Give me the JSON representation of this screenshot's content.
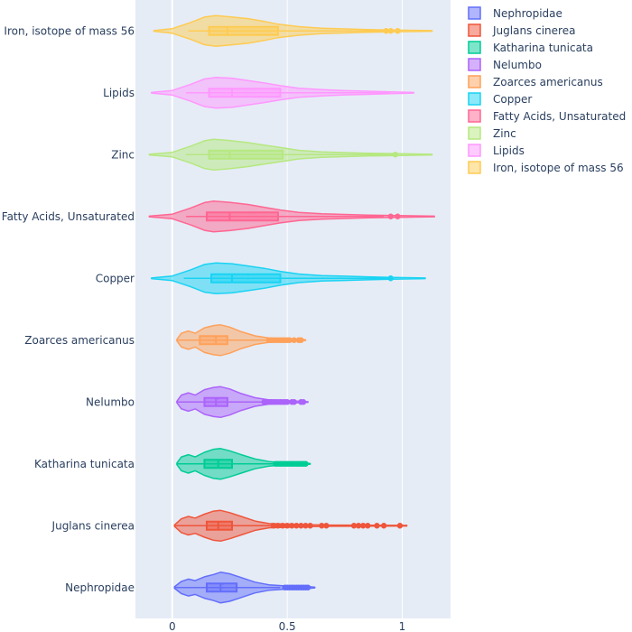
{
  "chart_data": {
    "type": "violin",
    "orientation": "horizontal",
    "title": "",
    "xlabel": "",
    "ylabel": "",
    "xlim": [
      -0.16,
      1.21
    ],
    "x_ticks": [
      0,
      0.5,
      1
    ],
    "x_tick_labels": [
      "0",
      "0.5",
      "1"
    ],
    "grid": true,
    "legend_position": "right",
    "series": [
      {
        "name": "Nephropidae",
        "color": "#636efa",
        "range": [
          0.01,
          0.62
        ],
        "box": {
          "q1": 0.15,
          "median": 0.21,
          "mean": 0.22,
          "q3": 0.28,
          "lower_fence": 0.01,
          "upper_fence": 0.47
        },
        "outliers": [
          0.49,
          0.5,
          0.51,
          0.52,
          0.53,
          0.54,
          0.55,
          0.56,
          0.57,
          0.58,
          0.59
        ],
        "density": [
          [
            0.01,
            0.05
          ],
          [
            0.04,
            0.4
          ],
          [
            0.07,
            0.55
          ],
          [
            0.1,
            0.45
          ],
          [
            0.14,
            0.7
          ],
          [
            0.18,
            0.85
          ],
          [
            0.21,
            1.0
          ],
          [
            0.25,
            0.9
          ],
          [
            0.3,
            0.65
          ],
          [
            0.36,
            0.35
          ],
          [
            0.42,
            0.18
          ],
          [
            0.48,
            0.12
          ],
          [
            0.53,
            0.12
          ],
          [
            0.58,
            0.08
          ],
          [
            0.62,
            0.02
          ]
        ]
      },
      {
        "name": "Juglans cinerea",
        "color": "#ef553b",
        "range": [
          0.01,
          1.02
        ],
        "box": {
          "q1": 0.15,
          "median": 0.2,
          "mean": 0.2,
          "q3": 0.26,
          "lower_fence": 0.01,
          "upper_fence": 0.43
        },
        "outliers": [
          0.44,
          0.46,
          0.48,
          0.5,
          0.52,
          0.54,
          0.56,
          0.58,
          0.6,
          0.65,
          0.67,
          0.79,
          0.81,
          0.83,
          0.85,
          0.89,
          0.92,
          0.99
        ],
        "density": [
          [
            0.01,
            0.05
          ],
          [
            0.04,
            0.45
          ],
          [
            0.07,
            0.6
          ],
          [
            0.1,
            0.5
          ],
          [
            0.14,
            0.75
          ],
          [
            0.18,
            0.95
          ],
          [
            0.21,
            1.0
          ],
          [
            0.25,
            0.85
          ],
          [
            0.3,
            0.6
          ],
          [
            0.36,
            0.3
          ],
          [
            0.42,
            0.14
          ],
          [
            0.5,
            0.1
          ],
          [
            0.6,
            0.06
          ],
          [
            0.7,
            0.04
          ],
          [
            0.85,
            0.03
          ],
          [
            1.02,
            0.02
          ]
        ]
      },
      {
        "name": "Katharina tunicata",
        "color": "#00cc96",
        "range": [
          0.02,
          0.6
        ],
        "box": {
          "q1": 0.14,
          "median": 0.2,
          "mean": 0.2,
          "q3": 0.26,
          "lower_fence": 0.02,
          "upper_fence": 0.44
        },
        "outliers": [
          0.45,
          0.46,
          0.47,
          0.48,
          0.49,
          0.5,
          0.51,
          0.52,
          0.53,
          0.54,
          0.55,
          0.56,
          0.57,
          0.58
        ],
        "density": [
          [
            0.02,
            0.05
          ],
          [
            0.04,
            0.45
          ],
          [
            0.07,
            0.6
          ],
          [
            0.1,
            0.45
          ],
          [
            0.14,
            0.75
          ],
          [
            0.18,
            0.95
          ],
          [
            0.21,
            1.0
          ],
          [
            0.25,
            0.85
          ],
          [
            0.3,
            0.6
          ],
          [
            0.36,
            0.32
          ],
          [
            0.42,
            0.15
          ],
          [
            0.48,
            0.08
          ],
          [
            0.55,
            0.07
          ],
          [
            0.6,
            0.02
          ]
        ]
      },
      {
        "name": "Nelumbo",
        "color": "#ab63fa",
        "range": [
          0.02,
          0.59
        ],
        "box": {
          "q1": 0.14,
          "median": 0.19,
          "mean": 0.2,
          "q3": 0.24,
          "lower_fence": 0.02,
          "upper_fence": 0.39
        },
        "outliers": [
          0.4,
          0.41,
          0.42,
          0.43,
          0.44,
          0.45,
          0.46,
          0.47,
          0.48,
          0.49,
          0.5,
          0.52,
          0.53,
          0.56,
          0.57
        ],
        "density": [
          [
            0.02,
            0.05
          ],
          [
            0.04,
            0.45
          ],
          [
            0.07,
            0.6
          ],
          [
            0.1,
            0.45
          ],
          [
            0.14,
            0.8
          ],
          [
            0.18,
            0.95
          ],
          [
            0.21,
            1.0
          ],
          [
            0.25,
            0.85
          ],
          [
            0.3,
            0.55
          ],
          [
            0.36,
            0.28
          ],
          [
            0.42,
            0.14
          ],
          [
            0.48,
            0.1
          ],
          [
            0.54,
            0.06
          ],
          [
            0.59,
            0.02
          ]
        ]
      },
      {
        "name": "Zoarces americanus",
        "color": "#ffa15a",
        "range": [
          0.02,
          0.58
        ],
        "box": {
          "q1": 0.12,
          "median": 0.19,
          "mean": 0.18,
          "q3": 0.24,
          "lower_fence": 0.02,
          "upper_fence": 0.41
        },
        "outliers": [
          0.42,
          0.43,
          0.44,
          0.45,
          0.46,
          0.47,
          0.48,
          0.49,
          0.5,
          0.51,
          0.53,
          0.55,
          0.56
        ],
        "density": [
          [
            0.02,
            0.05
          ],
          [
            0.04,
            0.45
          ],
          [
            0.07,
            0.6
          ],
          [
            0.1,
            0.45
          ],
          [
            0.14,
            0.8
          ],
          [
            0.18,
            0.95
          ],
          [
            0.21,
            1.0
          ],
          [
            0.25,
            0.85
          ],
          [
            0.3,
            0.55
          ],
          [
            0.36,
            0.28
          ],
          [
            0.42,
            0.14
          ],
          [
            0.48,
            0.1
          ],
          [
            0.54,
            0.06
          ],
          [
            0.58,
            0.02
          ]
        ]
      },
      {
        "name": "Copper",
        "color": "#19d3f3",
        "range": [
          -0.09,
          1.1
        ],
        "box": {
          "q1": 0.17,
          "median": 0.26,
          "mean": 0.33,
          "q3": 0.47,
          "lower_fence": 0.05,
          "upper_fence": 0.95
        },
        "outliers": [
          0.95
        ],
        "density": [
          [
            -0.09,
            0.02
          ],
          [
            0.0,
            0.15
          ],
          [
            0.08,
            0.55
          ],
          [
            0.14,
            0.9
          ],
          [
            0.19,
            1.0
          ],
          [
            0.26,
            0.95
          ],
          [
            0.33,
            0.8
          ],
          [
            0.4,
            0.65
          ],
          [
            0.47,
            0.45
          ],
          [
            0.55,
            0.28
          ],
          [
            0.65,
            0.18
          ],
          [
            0.75,
            0.14
          ],
          [
            0.85,
            0.1
          ],
          [
            0.95,
            0.06
          ],
          [
            1.1,
            0.02
          ]
        ]
      },
      {
        "name": "Fatty Acids, Unsaturated",
        "color": "#ff6692",
        "range": [
          -0.1,
          1.14
        ],
        "box": {
          "q1": 0.15,
          "median": 0.25,
          "mean": 0.33,
          "q3": 0.46,
          "lower_fence": 0.06,
          "upper_fence": 0.92
        },
        "outliers": [
          0.95,
          0.98
        ],
        "density": [
          [
            -0.1,
            0.02
          ],
          [
            0.0,
            0.15
          ],
          [
            0.08,
            0.55
          ],
          [
            0.14,
            0.9
          ],
          [
            0.18,
            1.0
          ],
          [
            0.25,
            0.92
          ],
          [
            0.33,
            0.78
          ],
          [
            0.4,
            0.6
          ],
          [
            0.47,
            0.42
          ],
          [
            0.55,
            0.27
          ],
          [
            0.65,
            0.18
          ],
          [
            0.75,
            0.13
          ],
          [
            0.85,
            0.09
          ],
          [
            0.98,
            0.06
          ],
          [
            1.14,
            0.02
          ]
        ]
      },
      {
        "name": "Zinc",
        "color": "#b6e880",
        "range": [
          -0.1,
          1.13
        ],
        "box": {
          "q1": 0.16,
          "median": 0.25,
          "mean": 0.33,
          "q3": 0.48,
          "lower_fence": 0.06,
          "upper_fence": 0.97
        },
        "outliers": [
          0.97
        ],
        "density": [
          [
            -0.1,
            0.02
          ],
          [
            0.0,
            0.15
          ],
          [
            0.08,
            0.55
          ],
          [
            0.14,
            0.9
          ],
          [
            0.18,
            1.0
          ],
          [
            0.25,
            0.92
          ],
          [
            0.33,
            0.78
          ],
          [
            0.4,
            0.62
          ],
          [
            0.48,
            0.44
          ],
          [
            0.55,
            0.28
          ],
          [
            0.65,
            0.18
          ],
          [
            0.75,
            0.13
          ],
          [
            0.85,
            0.09
          ],
          [
            0.97,
            0.07
          ],
          [
            1.13,
            0.02
          ]
        ]
      },
      {
        "name": "Lipids",
        "color": "#ff97ff",
        "range": [
          -0.09,
          1.05
        ],
        "box": {
          "q1": 0.16,
          "median": 0.26,
          "mean": 0.33,
          "q3": 0.47,
          "lower_fence": 0.06,
          "upper_fence": 0.95
        },
        "outliers": [],
        "density": [
          [
            -0.09,
            0.02
          ],
          [
            0.0,
            0.15
          ],
          [
            0.08,
            0.55
          ],
          [
            0.14,
            0.9
          ],
          [
            0.19,
            1.0
          ],
          [
            0.26,
            0.95
          ],
          [
            0.33,
            0.8
          ],
          [
            0.4,
            0.64
          ],
          [
            0.47,
            0.46
          ],
          [
            0.55,
            0.3
          ],
          [
            0.65,
            0.2
          ],
          [
            0.75,
            0.14
          ],
          [
            0.85,
            0.1
          ],
          [
            0.95,
            0.06
          ],
          [
            1.05,
            0.02
          ]
        ]
      },
      {
        "name": "Iron, isotope of mass 56",
        "color": "#fecb52",
        "range": [
          -0.08,
          1.13
        ],
        "box": {
          "q1": 0.16,
          "median": 0.24,
          "mean": 0.33,
          "q3": 0.46,
          "lower_fence": 0.07,
          "upper_fence": 0.92
        },
        "outliers": [
          0.93,
          0.95,
          0.98
        ],
        "density": [
          [
            -0.08,
            0.02
          ],
          [
            0.0,
            0.15
          ],
          [
            0.08,
            0.55
          ],
          [
            0.14,
            0.9
          ],
          [
            0.19,
            1.0
          ],
          [
            0.25,
            0.92
          ],
          [
            0.33,
            0.8
          ],
          [
            0.4,
            0.62
          ],
          [
            0.46,
            0.44
          ],
          [
            0.55,
            0.28
          ],
          [
            0.65,
            0.18
          ],
          [
            0.75,
            0.13
          ],
          [
            0.85,
            0.09
          ],
          [
            0.95,
            0.06
          ],
          [
            1.13,
            0.02
          ]
        ]
      }
    ]
  }
}
